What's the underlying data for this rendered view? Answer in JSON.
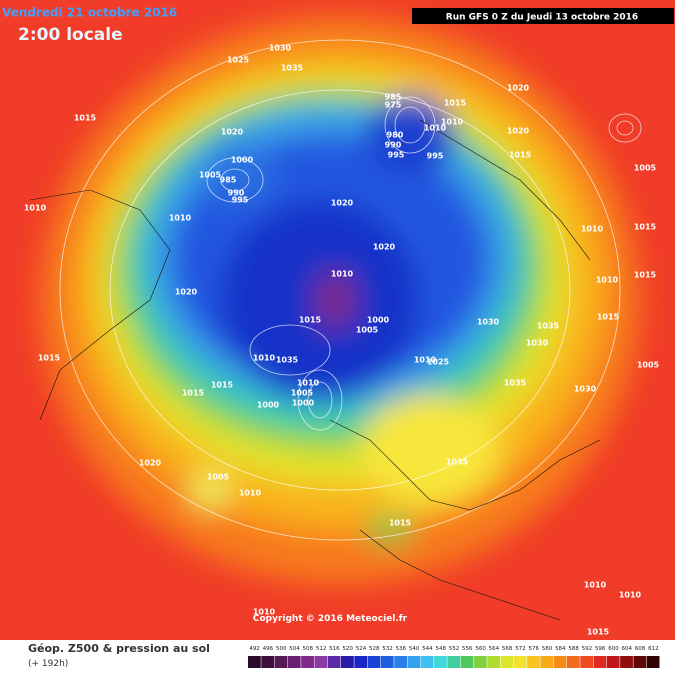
{
  "header": {
    "date": "Vendredi 21 octobre 2016",
    "time": "2:00 locale",
    "run": "Run GFS 0 Z du Jeudi 13 octobre 2016"
  },
  "map": {
    "copyright": "Copyright © 2016 Meteociel.fr",
    "pressure_labels": [
      1030,
      1025,
      1035,
      1020,
      1015,
      985,
      975,
      980,
      990,
      995,
      1010,
      1010,
      1020,
      995,
      1015,
      1015,
      1020,
      1000,
      985,
      990,
      1005,
      995,
      1010,
      1010,
      1020,
      1020,
      1010,
      1015,
      1015,
      1010,
      1020,
      1010,
      1015,
      1000,
      1005,
      1030,
      1035,
      1030,
      1015,
      1005,
      1010,
      1025,
      1035,
      1010,
      1035,
      1030,
      1015,
      1015,
      1010,
      1005,
      1000,
      1000,
      1015,
      1020,
      1005,
      1010,
      1035,
      1015,
      1005,
      1010,
      1010,
      1010,
      1015
    ]
  },
  "legend": {
    "title": "Géop. Z500 & pression au sol",
    "lead": "(+ 192h)",
    "scale": [
      492,
      496,
      500,
      504,
      508,
      512,
      516,
      520,
      524,
      528,
      532,
      536,
      540,
      544,
      548,
      552,
      556,
      560,
      564,
      568,
      572,
      576,
      580,
      584,
      588,
      592,
      596,
      600,
      604,
      608,
      612
    ]
  }
}
